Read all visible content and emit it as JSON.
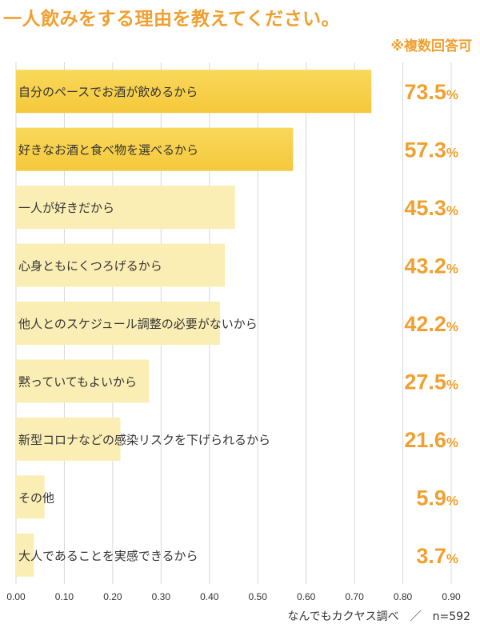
{
  "chart_data": {
    "type": "bar",
    "orientation": "horizontal",
    "title": "一人飲みをする理由を教えてください。",
    "note": "※複数回答可",
    "footer": "なんでもカクヤス調べ　／　n=592",
    "categories": [
      "自分のペースでお酒が飲めるから",
      "好きなお酒と食べ物を選べるから",
      "一人が好きだから",
      "心身ともにくつろげるから",
      "他人とのスケジュール調整の必要がないから",
      "黙っていてもよいから",
      "新型コロナなどの感染リスクを下げられるから",
      "その他",
      "大人であることを実感できるから"
    ],
    "values": [
      0.735,
      0.573,
      0.453,
      0.432,
      0.422,
      0.275,
      0.216,
      0.059,
      0.037
    ],
    "value_labels": [
      "73.5",
      "57.3",
      "45.3",
      "43.2",
      "42.2",
      "27.5",
      "21.6",
      "5.9",
      "3.7"
    ],
    "value_unit": "%",
    "xlim": [
      0,
      0.9
    ],
    "x_ticks": [
      "0.00",
      "0.10",
      "0.20",
      "0.30",
      "0.40",
      "0.50",
      "0.60",
      "0.70",
      "0.80",
      "0.90"
    ],
    "grid": true,
    "colors": {
      "bar_top": "#f5c83c",
      "bar_other": "#fbeeb4",
      "value_label": "#f0a030",
      "grid": "#d8d8d8"
    }
  }
}
